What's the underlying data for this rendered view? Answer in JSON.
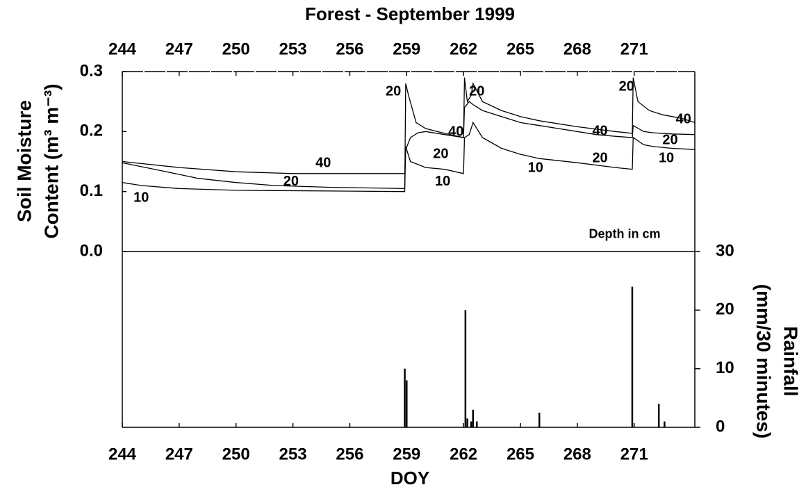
{
  "chart_data": [
    {
      "type": "line",
      "title": "Forest - September 1999",
      "ylabel": [
        "Soil Moisture",
        "Content (m³ m⁻³)"
      ],
      "xlim": [
        244,
        274.2
      ],
      "xticks": [
        244,
        247,
        250,
        253,
        256,
        259,
        262,
        265,
        268,
        271
      ],
      "ylim": [
        0,
        0.3
      ],
      "yticks": [
        {
          "value": 0,
          "label": "0.0"
        },
        0.1,
        0.2,
        0.3
      ],
      "series": [
        {
          "name": "10",
          "color": "#000000",
          "x": [
            244,
            245,
            247,
            250,
            258.9,
            258.95,
            259.2,
            260,
            261,
            262,
            262.05,
            262.3,
            262.5,
            263,
            264,
            265,
            266,
            268,
            270,
            270.9,
            270.95,
            271.5,
            272,
            273,
            274.2
          ],
          "values": [
            0.115,
            0.11,
            0.105,
            0.102,
            0.1,
            0.175,
            0.15,
            0.14,
            0.137,
            0.13,
            0.19,
            0.195,
            0.215,
            0.19,
            0.172,
            0.162,
            0.155,
            0.148,
            0.14,
            0.137,
            0.19,
            0.178,
            0.175,
            0.172,
            0.17
          ]
        },
        {
          "name": "20",
          "color": "#000000",
          "x": [
            244,
            246,
            248,
            250,
            252,
            255,
            258.9,
            258.95,
            259.1,
            259.5,
            260,
            261,
            262,
            262.05,
            262.2,
            262.4,
            262.5,
            263,
            264,
            265,
            266,
            268,
            270,
            270.9,
            270.95,
            271.2,
            271.8,
            272.5,
            273.5,
            274.2
          ],
          "values": [
            0.148,
            0.135,
            0.122,
            0.115,
            0.11,
            0.107,
            0.105,
            0.28,
            0.26,
            0.215,
            0.205,
            0.197,
            0.19,
            0.29,
            0.25,
            0.26,
            0.28,
            0.25,
            0.235,
            0.225,
            0.218,
            0.208,
            0.2,
            0.197,
            0.29,
            0.25,
            0.235,
            0.228,
            0.222,
            0.215
          ]
        },
        {
          "name": "40",
          "color": "#000000",
          "x": [
            244,
            247,
            250,
            253,
            256,
            258.9,
            258.95,
            259.2,
            259.6,
            260,
            261,
            262,
            262.05,
            262.3,
            262.5,
            263,
            264,
            265,
            266,
            267,
            268,
            269,
            270,
            270.9,
            270.95,
            271.5,
            272,
            273,
            274.2
          ],
          "values": [
            0.15,
            0.14,
            0.133,
            0.13,
            0.13,
            0.13,
            0.17,
            0.19,
            0.198,
            0.2,
            0.195,
            0.19,
            0.24,
            0.25,
            0.245,
            0.235,
            0.225,
            0.215,
            0.21,
            0.205,
            0.2,
            0.195,
            0.192,
            0.19,
            0.21,
            0.2,
            0.198,
            0.196,
            0.195
          ]
        }
      ],
      "annotations": [
        {
          "text": "40",
          "x": 254.6,
          "y": 0.147
        },
        {
          "text": "20",
          "x": 252.9,
          "y": 0.116
        },
        {
          "text": "10",
          "x": 245,
          "y": 0.089
        },
        {
          "text": "20",
          "x": 258.3,
          "y": 0.266
        },
        {
          "text": "40",
          "x": 261.6,
          "y": 0.199
        },
        {
          "text": "20",
          "x": 260.8,
          "y": 0.162
        },
        {
          "text": "10",
          "x": 260.9,
          "y": 0.116
        },
        {
          "text": "20",
          "x": 262.7,
          "y": 0.266
        },
        {
          "text": "40",
          "x": 269.2,
          "y": 0.2
        },
        {
          "text": "20",
          "x": 269.2,
          "y": 0.155
        },
        {
          "text": "10",
          "x": 265.8,
          "y": 0.139
        },
        {
          "text": "20",
          "x": 270.6,
          "y": 0.274
        },
        {
          "text": "40",
          "x": 273.6,
          "y": 0.22
        },
        {
          "text": "20",
          "x": 272.9,
          "y": 0.185
        },
        {
          "text": "10",
          "x": 272.7,
          "y": 0.155
        },
        {
          "text": "Depth in cm",
          "x": 270.5,
          "y": 0.028
        }
      ]
    },
    {
      "type": "bar",
      "xlabel": "DOY",
      "ylabel": [
        "Rainfall",
        "(mm/30 minutes)"
      ],
      "xlim": [
        244,
        274.2
      ],
      "xticks": [
        244,
        247,
        250,
        253,
        256,
        259,
        262,
        265,
        268,
        271
      ],
      "ylim": [
        0,
        30
      ],
      "yticks": [
        0,
        10,
        20,
        30
      ],
      "color": "#000000",
      "x": [
        258.9,
        259.0,
        262.1,
        262.2,
        262.4,
        262.5,
        262.7,
        266,
        270.9,
        272.3,
        272.6
      ],
      "values": [
        10,
        8,
        20,
        1.5,
        1,
        3,
        1,
        2.5,
        24,
        4,
        1
      ]
    }
  ]
}
